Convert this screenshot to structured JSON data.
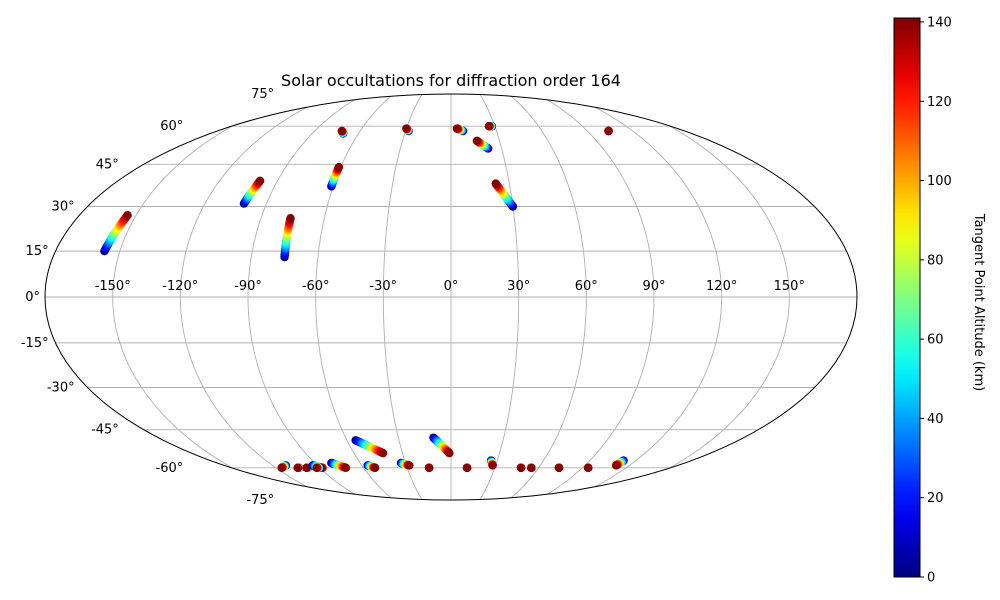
{
  "chart_data": {
    "type": "scatter",
    "projection": "mollweide",
    "title": "Solar occultations for diffraction order 164",
    "x_tick_labels": [
      "-150°",
      "-120°",
      "-90°",
      "-60°",
      "-30°",
      "0°",
      "30°",
      "60°",
      "90°",
      "120°",
      "150°"
    ],
    "x_ticks": [
      -150,
      -120,
      -90,
      -60,
      -30,
      0,
      30,
      60,
      90,
      120,
      150
    ],
    "y_tick_labels": [
      "-75°",
      "-60°",
      "-45°",
      "-30°",
      "-15°",
      "0°",
      "15°",
      "30°",
      "45°",
      "60°",
      "75°"
    ],
    "y_ticks": [
      -75,
      -60,
      -45,
      -30,
      -15,
      0,
      15,
      30,
      45,
      60,
      75
    ],
    "grid": true,
    "colorbar": {
      "label": "Tangent Point Altitude (km)",
      "colormap": "jet",
      "range": [
        0,
        141
      ],
      "tick_labels": [
        "0",
        "20",
        "40",
        "60",
        "80",
        "100",
        "120",
        "140"
      ],
      "ticks": [
        0,
        20,
        40,
        60,
        80,
        100,
        120,
        140
      ]
    },
    "tracks": [
      {
        "lon_start": -157,
        "lat_start": 15,
        "lon_end": -154,
        "lat_end": 27
      },
      {
        "lon_start": -101,
        "lat_start": 31,
        "lon_end": -99,
        "lat_end": 39
      },
      {
        "lon_start": -75,
        "lat_start": 13,
        "lon_end": -76,
        "lat_end": 26
      },
      {
        "lon_start": -70,
        "lat_start": 57,
        "lon_end": -72,
        "lat_end": 58
      },
      {
        "lon_start": -61,
        "lat_start": 37,
        "lon_end": -61,
        "lat_end": 44
      },
      {
        "lon_start": -28,
        "lat_start": 58,
        "lon_end": -30,
        "lat_end": 59
      },
      {
        "lon_start": 8,
        "lat_start": 58,
        "lon_end": 4,
        "lat_end": 59
      },
      {
        "lon_start": 22,
        "lat_start": 51,
        "lon_end": 16,
        "lat_end": 54
      },
      {
        "lon_start": 28,
        "lat_start": 60,
        "lon_end": 26,
        "lat_end": 60
      },
      {
        "lon_start": 30,
        "lat_start": 30,
        "lon_end": 23,
        "lat_end": 38
      },
      {
        "lon_start": 104,
        "lat_start": 58,
        "lon_end": 104,
        "lat_end": 58
      },
      {
        "lon_start": -111,
        "lat_start": -59,
        "lon_end": -116,
        "lat_end": -60
      },
      {
        "lon_start": -104,
        "lat_start": -60,
        "lon_end": -105,
        "lat_end": -60
      },
      {
        "lon_start": -98,
        "lat_start": -60,
        "lon_end": -99,
        "lat_end": -60
      },
      {
        "lon_start": -93,
        "lat_start": -59,
        "lon_end": -88,
        "lat_end": -60
      },
      {
        "lon_start": -90,
        "lat_start": -60,
        "lon_end": -92,
        "lat_end": -60
      },
      {
        "lon_start": -79,
        "lat_start": -58,
        "lon_end": -72,
        "lat_end": -60
      },
      {
        "lon_start": -56,
        "lat_start": -59,
        "lon_end": -52,
        "lat_end": -60
      },
      {
        "lon_start": -55,
        "lat_start": -49,
        "lon_end": -42,
        "lat_end": -54
      },
      {
        "lon_start": -33,
        "lat_start": -58,
        "lon_end": -28,
        "lat_end": -59
      },
      {
        "lon_start": -15,
        "lat_start": -60,
        "lon_end": -15,
        "lat_end": -60
      },
      {
        "lon_start": -10,
        "lat_start": -48,
        "lon_end": -1,
        "lat_end": -54
      },
      {
        "lon_start": 11,
        "lat_start": -60,
        "lon_end": 11,
        "lat_end": -60
      },
      {
        "lon_start": 26,
        "lat_start": -57,
        "lon_end": 28,
        "lat_end": -59
      },
      {
        "lon_start": 48,
        "lat_start": -60,
        "lon_end": 48,
        "lat_end": -60
      },
      {
        "lon_start": 55,
        "lat_start": -60,
        "lon_end": 55,
        "lat_end": -60
      },
      {
        "lon_start": 74,
        "lat_start": -60,
        "lon_end": 74,
        "lat_end": -60
      },
      {
        "lon_start": 94,
        "lat_start": -60,
        "lon_end": 94,
        "lat_end": -60
      },
      {
        "lon_start": 112,
        "lat_start": -57,
        "lon_end": 111,
        "lat_end": -59
      }
    ]
  }
}
